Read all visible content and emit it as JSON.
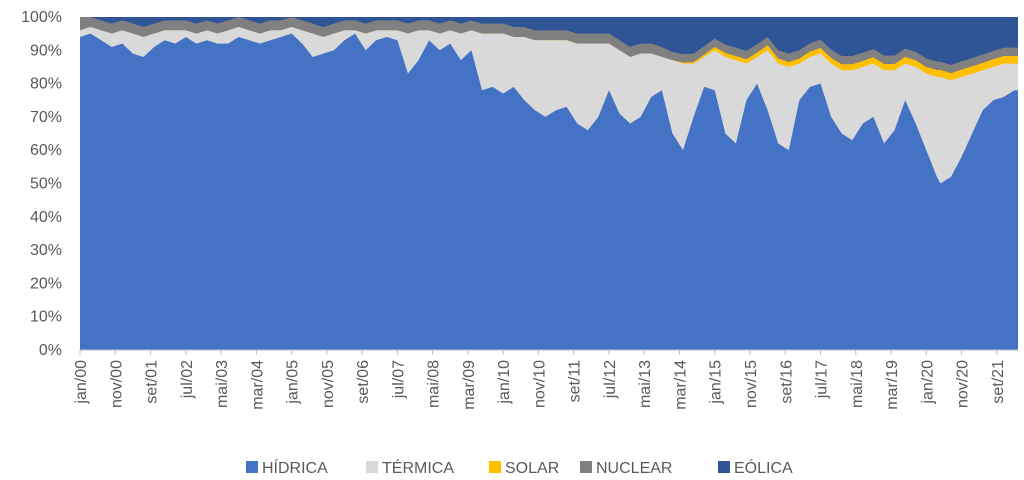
{
  "chart_data": {
    "type": "area",
    "stacked": "percent",
    "ylim": [
      0,
      100
    ],
    "y_ticks": [
      "0%",
      "10%",
      "20%",
      "30%",
      "40%",
      "50%",
      "60%",
      "70%",
      "80%",
      "90%",
      "100%"
    ],
    "x_ticks": [
      "jan/00",
      "nov/00",
      "set/01",
      "jul/02",
      "mai/03",
      "mar/04",
      "jan/05",
      "nov/05",
      "set/06",
      "jul/07",
      "mai/08",
      "mar/09",
      "jan/10",
      "nov/10",
      "set/11",
      "jul/12",
      "mai/13",
      "mar/14",
      "jan/15",
      "nov/15",
      "set/16",
      "jul/17",
      "mai/18",
      "mar/19",
      "jan/20",
      "nov/20",
      "set/21"
    ],
    "x_range": [
      "jan/00",
      "mar/22"
    ],
    "series_order": [
      "HÍDRICA",
      "TÉRMICA",
      "SOLAR",
      "NUCLEAR",
      "EÓLICA"
    ],
    "cumulative_tops": {
      "x": [
        0,
        3,
        6,
        9,
        12,
        15,
        18,
        21,
        24,
        27,
        30,
        33,
        36,
        39,
        42,
        45,
        48,
        51,
        54,
        57,
        60,
        63,
        66,
        69,
        72,
        75,
        78,
        81,
        84,
        87,
        90,
        93,
        96,
        99,
        102,
        105,
        108,
        111,
        114,
        117,
        120,
        123,
        126,
        129,
        132,
        135,
        138,
        141,
        144,
        147,
        150,
        153,
        156,
        159,
        162,
        165,
        168,
        171,
        174,
        177,
        180,
        183,
        186,
        189,
        192,
        195,
        198,
        201,
        204,
        207,
        210,
        213,
        216,
        219,
        222,
        225,
        228,
        231,
        234,
        237,
        240,
        243,
        244,
        247,
        250,
        253,
        256,
        259,
        262,
        265,
        266
      ],
      "hidrica": [
        94,
        95,
        93,
        91,
        92,
        89,
        88,
        91,
        93,
        92,
        94,
        92,
        93,
        92,
        92,
        94,
        93,
        92,
        93,
        94,
        95,
        92,
        88,
        89,
        90,
        93,
        95,
        90,
        93,
        94,
        93,
        83,
        87,
        93,
        90,
        92,
        87,
        90,
        78,
        79,
        77,
        79,
        75,
        72,
        70,
        72,
        73,
        68,
        66,
        70,
        78,
        71,
        68,
        70,
        76,
        78,
        65,
        60,
        70,
        79,
        78,
        65,
        62,
        75,
        80,
        72,
        62,
        60,
        75,
        79,
        80,
        70,
        65,
        63,
        68,
        70,
        62,
        66,
        75,
        68,
        60,
        52,
        50,
        52,
        58,
        65,
        72,
        75,
        76,
        78,
        78
      ],
      "termica": [
        96,
        97,
        96,
        95,
        96,
        95,
        94,
        95,
        96,
        96,
        96,
        95,
        96,
        95,
        96,
        97,
        96,
        95,
        96,
        96,
        97,
        96,
        95,
        94,
        95,
        96,
        96,
        95,
        96,
        96,
        96,
        95,
        96,
        96,
        95,
        96,
        95,
        96,
        95,
        95,
        95,
        94,
        94,
        93,
        93,
        93,
        93,
        92,
        92,
        92,
        92,
        90,
        88,
        89,
        89,
        88,
        87,
        86,
        86,
        88,
        90,
        88,
        87,
        86,
        88,
        90,
        86,
        85,
        86,
        88,
        89,
        86,
        84,
        84,
        85,
        86,
        84,
        84,
        86,
        85,
        83,
        82,
        82,
        81,
        82,
        83,
        84,
        85,
        86,
        86,
        86
      ],
      "solar": [
        96,
        97,
        96,
        95,
        96,
        95,
        94,
        95,
        96,
        96,
        96,
        95,
        96,
        95,
        96,
        97,
        96,
        95,
        96,
        96,
        97,
        96,
        95,
        94,
        95,
        96,
        96,
        95,
        96,
        96,
        96,
        95,
        96,
        96,
        95,
        96,
        95,
        96,
        95,
        95,
        95,
        94,
        94,
        93,
        93,
        93,
        93,
        92,
        92,
        92,
        92,
        90,
        88,
        89,
        89,
        88,
        87,
        86.3,
        86.5,
        88.7,
        91,
        89.2,
        88.3,
        87.3,
        89.3,
        91.5,
        87.5,
        86.5,
        87.5,
        89.6,
        90.7,
        87.7,
        85.8,
        85.8,
        86.8,
        87.9,
        85.9,
        85.9,
        88,
        87,
        85,
        84.1,
        84.1,
        83.1,
        84.2,
        85.2,
        86.2,
        87.3,
        88.3,
        88.3,
        88.3
      ],
      "nuclear": [
        100,
        100,
        99,
        98,
        99,
        98,
        97,
        98,
        99,
        99,
        99,
        98,
        99,
        98,
        99,
        100,
        99,
        98,
        99,
        99,
        100,
        99,
        98,
        97,
        98,
        99,
        99,
        98,
        99,
        99,
        99,
        98,
        99,
        99,
        98,
        99,
        98,
        99,
        98,
        98,
        98,
        97,
        97,
        96,
        96,
        96,
        96,
        95,
        95,
        95,
        95,
        93,
        91,
        92,
        92,
        91,
        89.5,
        88.8,
        89,
        91.2,
        93.5,
        91.7,
        90.8,
        89.8,
        91.8,
        94,
        90,
        89,
        90,
        92.1,
        93.2,
        90.2,
        88.3,
        88.3,
        89.3,
        90.4,
        88.4,
        88.4,
        90.5,
        89.5,
        87.5,
        86.6,
        86.6,
        85.6,
        86.7,
        87.7,
        88.7,
        89.8,
        90.8,
        90.8,
        90.8
      ]
    },
    "legend": [
      {
        "label": "HÍDRICA",
        "color": "#4472C4"
      },
      {
        "label": "TÉRMICA",
        "color": "#D9D9D9"
      },
      {
        "label": "SOLAR",
        "color": "#FFC000"
      },
      {
        "label": "NUCLEAR",
        "color": "#808080"
      },
      {
        "label": "EÓLICA",
        "color": "#2F5597"
      }
    ],
    "legend_position": "bottom",
    "grid": false
  }
}
